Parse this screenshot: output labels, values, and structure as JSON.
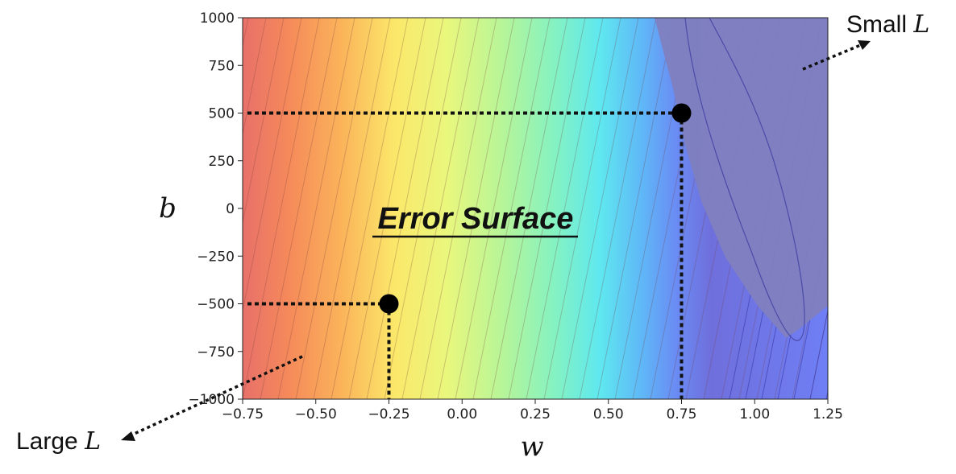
{
  "chart_data": {
    "type": "heatmap",
    "title": "Error Surface",
    "xlabel": "w",
    "ylabel": "b",
    "xlim": [
      -0.75,
      1.25
    ],
    "ylim": [
      -1000,
      1000
    ],
    "xticks": [
      "−0.75",
      "−0.50",
      "−0.25",
      "0.00",
      "0.25",
      "0.50",
      "0.75",
      "1.00",
      "1.25"
    ],
    "xtick_values": [
      -0.75,
      -0.5,
      -0.25,
      0,
      0.25,
      0.5,
      0.75,
      1.0,
      1.25
    ],
    "yticks": [
      "1000",
      "750",
      "500",
      "250",
      "0",
      "−250",
      "−500",
      "−750",
      "−1000"
    ],
    "ytick_values": [
      1000,
      750,
      500,
      250,
      0,
      -250,
      -500,
      -750,
      -1000
    ],
    "colormap": "jet",
    "minimum_region": {
      "w": 1.05,
      "b": 200,
      "color": "#7f7fbf"
    },
    "points": [
      {
        "name": "point-a",
        "w": 0.75,
        "b": 500
      },
      {
        "name": "point-b",
        "w": -0.25,
        "b": -500
      }
    ],
    "annotations": {
      "small_prefix": "Small ",
      "large_prefix": "Large ",
      "loss_var": "L"
    },
    "grid": false
  }
}
